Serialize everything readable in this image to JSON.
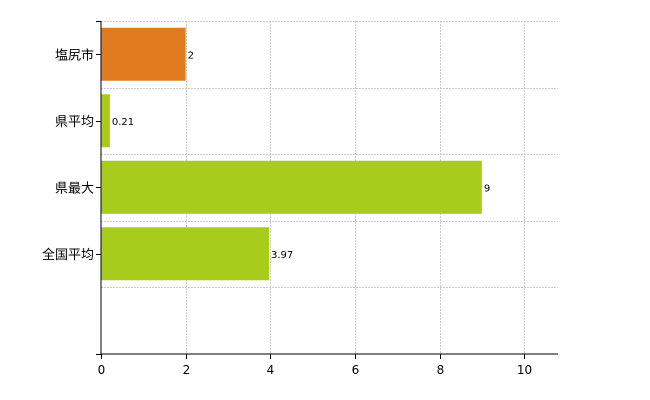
{
  "chart_data": {
    "type": "bar",
    "orientation": "horizontal",
    "categories": [
      "塩尻市",
      "県平均",
      "県最大",
      "全国平均"
    ],
    "values": [
      2,
      0.21,
      9,
      3.97
    ],
    "value_labels": [
      "2",
      "0.21",
      "9",
      "3.97"
    ],
    "bar_colors": [
      "#e07b20",
      "#a8cc1c",
      "#a8cc1c",
      "#a8cc1c"
    ],
    "x_ticks": [
      0,
      2,
      4,
      6,
      8,
      10
    ],
    "xlim": [
      0,
      10.8
    ],
    "grid": true,
    "title": "",
    "xlabel": "",
    "ylabel": ""
  }
}
